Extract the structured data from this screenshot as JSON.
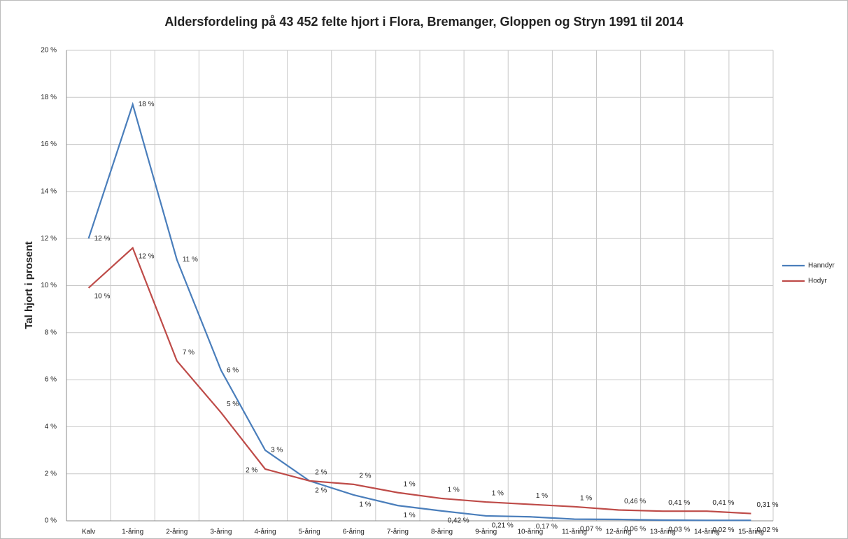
{
  "chart_data": {
    "type": "line",
    "title": "Aldersfordeling på 43 452 felte hjort i Flora, Bremanger, Gloppen og Stryn 1991 til 2014",
    "y_label": "Tal hjort i prosent",
    "categories": [
      "Kalv",
      "1-åring",
      "2-åring",
      "3-åring",
      "4-åring",
      "5-åring",
      "6-åring",
      "7-åring",
      "8-åring",
      "9-åring",
      "10-åring",
      "11-åring",
      "12-åring",
      "13-åring",
      "14-åring",
      "15-åring"
    ],
    "series": [
      {
        "name": "Hanndyr",
        "color": "#4a7ebb",
        "values": [
          12.0,
          17.7,
          11.1,
          6.4,
          3.0,
          1.7,
          1.1,
          0.65,
          0.42,
          0.21,
          0.17,
          0.07,
          0.06,
          0.03,
          0.02,
          0.02
        ],
        "value_labels": [
          "12 %",
          "18 %",
          "11 %",
          "6 %",
          "3 %",
          "2 %",
          "1 %",
          "1 %",
          "0,42 %",
          "0,21 %",
          "0,17 %",
          "0,07 %",
          "0,06 %",
          "0,03 %",
          "0,02 %",
          "0,02 %"
        ]
      },
      {
        "name": "Hodyr",
        "color": "#be4b48",
        "values": [
          9.9,
          11.6,
          6.8,
          4.6,
          2.2,
          1.7,
          1.55,
          1.2,
          0.95,
          0.8,
          0.7,
          0.6,
          0.46,
          0.41,
          0.41,
          0.31
        ],
        "value_labels": [
          "10 %",
          "12 %",
          "7 %",
          "5 %",
          "2 %",
          "2 %",
          "2 %",
          "1 %",
          "1 %",
          "1 %",
          "1 %",
          "1 %",
          "0,46 %",
          "0,41 %",
          "0,41 %",
          "0,31 %"
        ]
      }
    ],
    "ylim": [
      0,
      20
    ],
    "yticks": [
      {
        "value": 0,
        "label": "0 %"
      },
      {
        "value": 2,
        "label": "2 %"
      },
      {
        "value": 4,
        "label": "4 %"
      },
      {
        "value": 6,
        "label": "6 %"
      },
      {
        "value": 8,
        "label": "8 %"
      },
      {
        "value": 10,
        "label": "10 %"
      },
      {
        "value": 12,
        "label": "12 %"
      },
      {
        "value": 14,
        "label": "14 %"
      },
      {
        "value": 16,
        "label": "16 %"
      },
      {
        "value": 18,
        "label": "18 %"
      },
      {
        "value": 20,
        "label": "20 %"
      }
    ],
    "grid": true,
    "legend": "right"
  }
}
